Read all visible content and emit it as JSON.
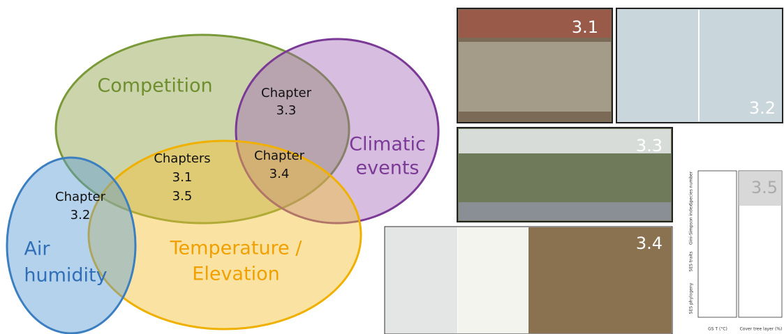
{
  "venn": {
    "sets": [
      {
        "lines": [
          "Competition"
        ]
      },
      {
        "lines": [
          "Climatic",
          "events"
        ]
      },
      {
        "lines": [
          "Temperature /",
          "Elevation"
        ]
      },
      {
        "lines": [
          "Air",
          "humidity"
        ]
      }
    ],
    "regions": [
      {
        "lines": [
          "Chapter",
          "3.3"
        ]
      },
      {
        "lines": [
          "Chapters",
          "3.1",
          "3.5"
        ]
      },
      {
        "lines": [
          "Chapter",
          "3.4"
        ]
      },
      {
        "lines": [
          "Chapter",
          "3.2"
        ]
      }
    ]
  },
  "photos": [
    {
      "label": "3.1"
    },
    {
      "label": "3.2"
    },
    {
      "label": "3.3"
    },
    {
      "label": "3.4"
    },
    {
      "label": "3.5",
      "y_labels": [
        "Species number",
        "Gini-Simpson index",
        "SES traits",
        "SES phylogeny"
      ],
      "x_labels": [
        "GS T (°C)",
        "Cover tree layer (%)"
      ]
    }
  ]
}
